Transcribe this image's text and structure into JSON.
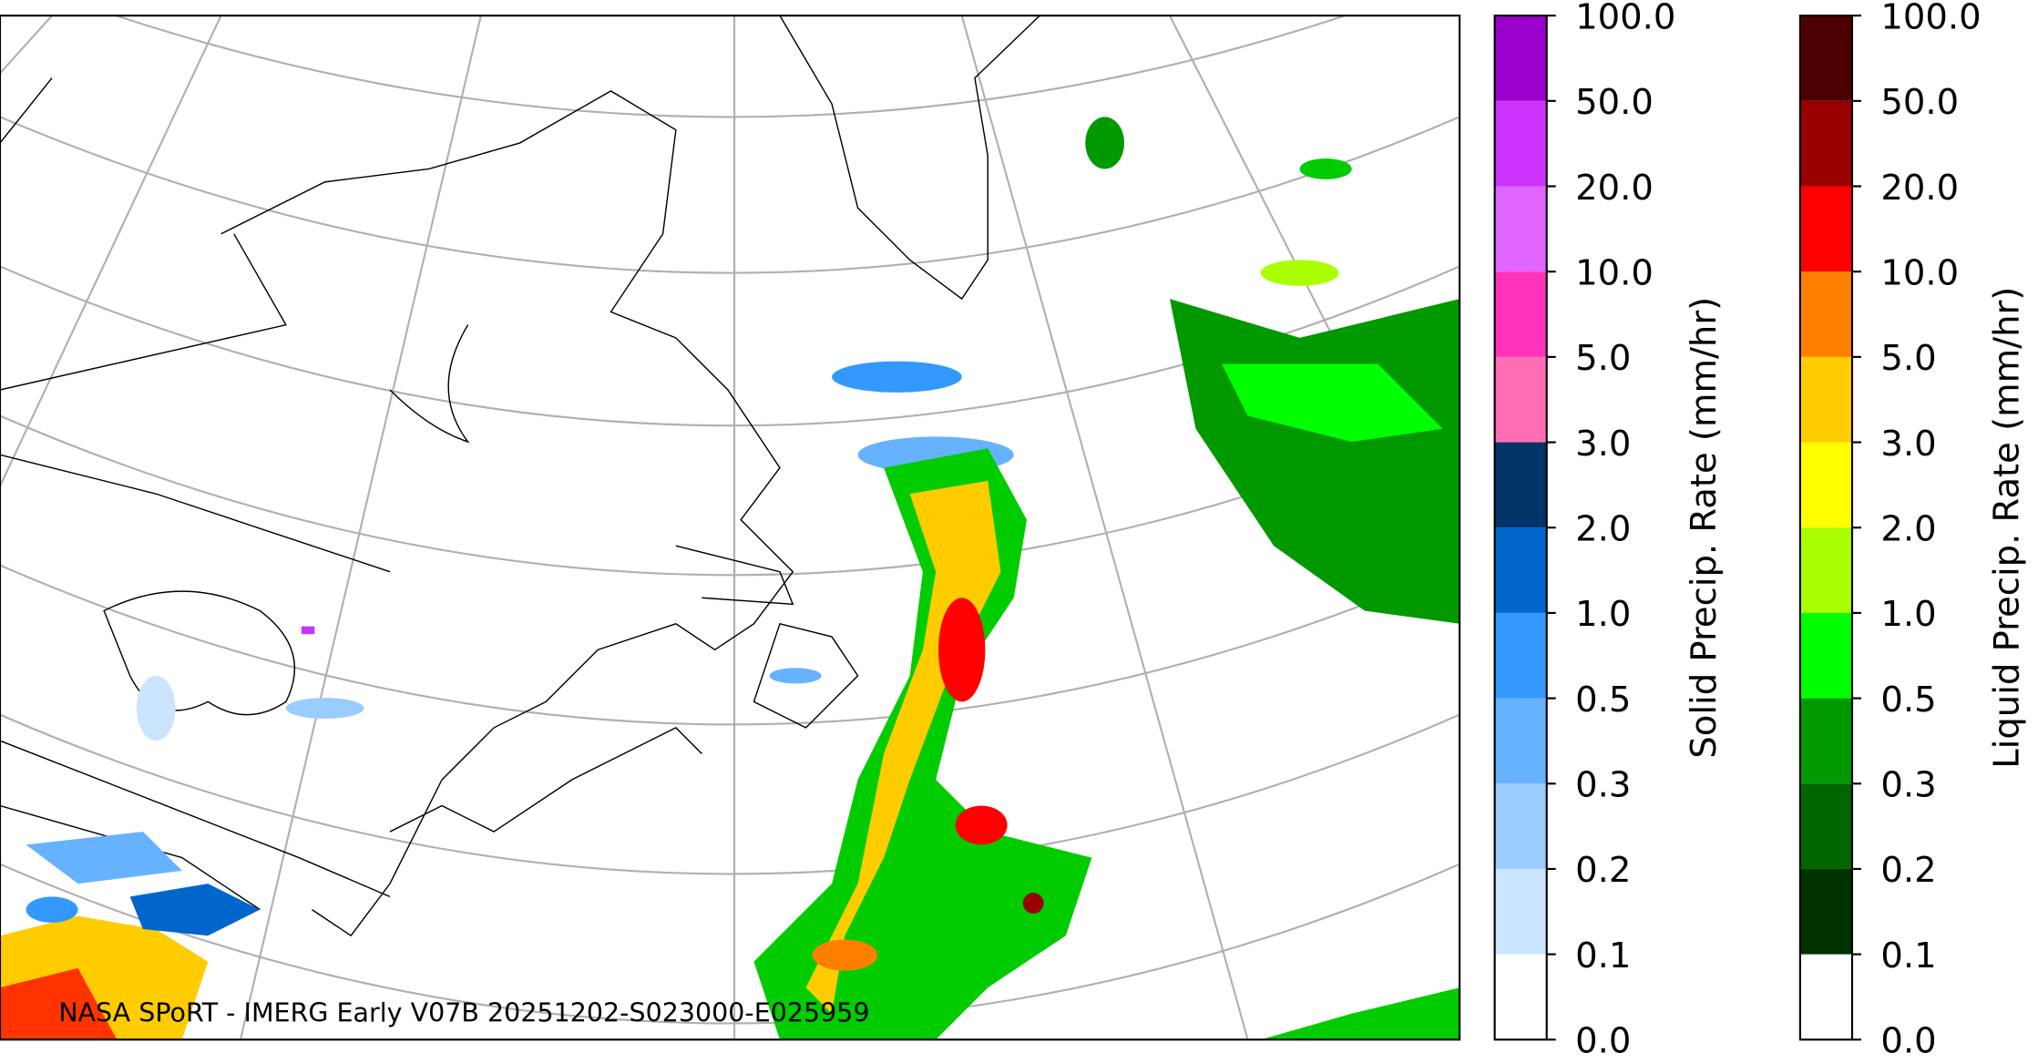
{
  "annotation": "NASA SPoRT - IMERG Early V07B 20251202-S023000-E025959",
  "colorbars": [
    {
      "label": "Solid Precip. Rate (mm/hr)",
      "ticks": [
        {
          "value": 0,
          "label": "0.0"
        },
        {
          "value": 0.1,
          "label": "0.1"
        },
        {
          "value": 0.2,
          "label": "0.2"
        },
        {
          "value": 0.3,
          "label": "0.3"
        },
        {
          "value": 0.5,
          "label": "0.5"
        },
        {
          "value": 1,
          "label": "1.0"
        },
        {
          "value": 2,
          "label": "2.0"
        },
        {
          "value": 3,
          "label": "3.0"
        },
        {
          "value": 5,
          "label": "5.0"
        },
        {
          "value": 10,
          "label": "10.0"
        },
        {
          "value": 20,
          "label": "20.0"
        },
        {
          "value": 50,
          "label": "50.0"
        },
        {
          "value": 100,
          "label": "100.0"
        }
      ],
      "colors": [
        "#ffffff",
        "#cce5ff",
        "#99ccff",
        "#66b2ff",
        "#3399ff",
        "#0066cc",
        "#003366",
        "#ff6eb4",
        "#ff33bb",
        "#e066ff",
        "#cc33ff",
        "#9900cc"
      ]
    },
    {
      "label": "Liquid Precip. Rate (mm/hr)",
      "ticks": [
        {
          "value": 0,
          "label": "0.0"
        },
        {
          "value": 0.1,
          "label": "0.1"
        },
        {
          "value": 0.2,
          "label": "0.2"
        },
        {
          "value": 0.3,
          "label": "0.3"
        },
        {
          "value": 0.5,
          "label": "0.5"
        },
        {
          "value": 1,
          "label": "1.0"
        },
        {
          "value": 2,
          "label": "2.0"
        },
        {
          "value": 3,
          "label": "3.0"
        },
        {
          "value": 5,
          "label": "5.0"
        },
        {
          "value": 10,
          "label": "10.0"
        },
        {
          "value": 20,
          "label": "20.0"
        },
        {
          "value": 50,
          "label": "50.0"
        },
        {
          "value": 100,
          "label": "100.0"
        }
      ],
      "colors": [
        "#ffffff",
        "#003300",
        "#006600",
        "#009900",
        "#00ff00",
        "#aaff00",
        "#ffff00",
        "#ffcc00",
        "#ff8000",
        "#ff0000",
        "#990000",
        "#4d0000"
      ]
    }
  ]
}
